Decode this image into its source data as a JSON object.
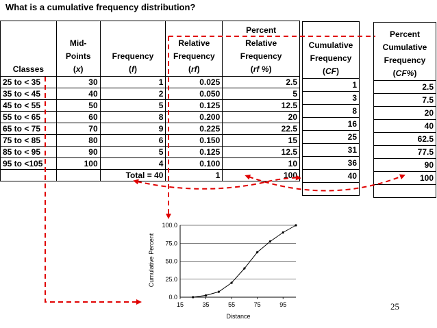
{
  "title": "What is a cumulative frequency distribution?",
  "main_table": {
    "headers": {
      "classes": "Classes",
      "midpoints_1": "Mid-",
      "midpoints_2": "Points",
      "midpoints_sym": "x",
      "frequency": "Frequency",
      "frequency_sym": "f",
      "rel_1": "Relative",
      "rel_2": "Frequency",
      "rel_sym": "rf",
      "prf_1": "Percent",
      "prf_2": "Relative",
      "prf_3": "Frequency",
      "prf_sym": "rf %"
    },
    "rows": [
      {
        "classes": "25 to < 35",
        "x": "30",
        "f": "1",
        "rf": "0.025",
        "prf": "2.5"
      },
      {
        "classes": "35 to < 45",
        "x": "40",
        "f": "2",
        "rf": "0.050",
        "prf": "5"
      },
      {
        "classes": "45 to < 55",
        "x": "50",
        "f": "5",
        "rf": "0.125",
        "prf": "12.5"
      },
      {
        "classes": "55 to < 65",
        "x": "60",
        "f": "8",
        "rf": "0.200",
        "prf": "20"
      },
      {
        "classes": "65 to < 75",
        "x": "70",
        "f": "9",
        "rf": "0.225",
        "prf": "22.5"
      },
      {
        "classes": "75 to < 85",
        "x": "80",
        "f": "6",
        "rf": "0.150",
        "prf": "15"
      },
      {
        "classes": "85 to < 95",
        "x": "90",
        "f": "5",
        "rf": "0.125",
        "prf": "12.5"
      },
      {
        "classes": "95 to <105",
        "x": "100",
        "f": "4",
        "rf": "0.100",
        "prf": "10"
      }
    ],
    "total": {
      "label": "Total = 40",
      "rf": "1",
      "prf": "100"
    }
  },
  "cf_table": {
    "header_1": "Cumulative",
    "header_2": "Frequency",
    "sym": "CF",
    "values": [
      "1",
      "3",
      "8",
      "16",
      "25",
      "31",
      "36",
      "40"
    ]
  },
  "pcf_table": {
    "header_1": "Percent",
    "header_2": "Cumulative",
    "header_3": "Frequency",
    "sym": "CF%",
    "values": [
      "2.5",
      "7.5",
      "20",
      "40",
      "62.5",
      "77.5",
      "90",
      "100"
    ]
  },
  "page_number": "25",
  "chart_data": {
    "type": "line",
    "xlabel": "Distance",
    "ylabel": "Cumulative Percent",
    "x": [
      25,
      35,
      45,
      55,
      65,
      75,
      85,
      95,
      105
    ],
    "y": [
      0,
      2.5,
      7.5,
      20,
      40,
      62.5,
      77.5,
      90,
      100
    ],
    "xlim": [
      15,
      105
    ],
    "ylim": [
      0,
      100
    ],
    "xticks": [
      "15",
      "35",
      "55",
      "75",
      "95"
    ],
    "yticks": [
      "0.0",
      "25.0",
      "50.0",
      "75.0",
      "100.0"
    ],
    "colors": {
      "line": "#000000",
      "grid": "#000000",
      "arrows": "#e00000"
    }
  }
}
